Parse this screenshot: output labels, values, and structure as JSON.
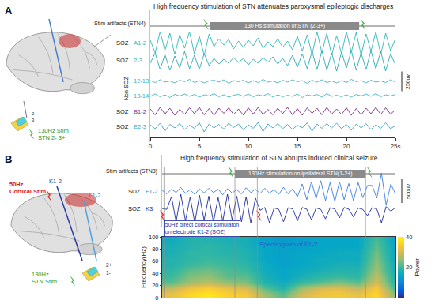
{
  "figure": {
    "panel_labels": [
      "A",
      "B"
    ],
    "illustration_A": {
      "stim_labels": [
        "130Hz Stim",
        "STN 2- 3+"
      ],
      "contacts": [
        "2",
        "3"
      ]
    },
    "illustration_B": {
      "cortical_stim": [
        "50Hz",
        "Cortical Stim"
      ],
      "electrodes": [
        "K1-2",
        "F1-2"
      ],
      "stim_labels": [
        "130Hz",
        "STN Stim"
      ],
      "contacts": [
        "2+",
        "1-"
      ]
    }
  },
  "chart_data": [
    {
      "type": "line",
      "title": "High frequency stimulation of STN attenuates paroxysmal epileptogic discharges",
      "xlim": [
        0,
        25
      ],
      "xticks": [
        0,
        5,
        10,
        15,
        20,
        {
          "value": 25,
          "label": "25s"
        }
      ],
      "ylim": [
        -200,
        200
      ],
      "tick_labels": "x",
      "x": [
        0,
        0.5,
        1,
        1.5,
        2,
        2.5,
        3,
        3.5,
        4,
        4.5,
        5,
        5.5,
        6,
        6.5,
        7,
        7.5,
        8,
        8.5,
        9,
        9.5,
        10,
        10.5,
        11,
        11.5,
        12,
        12.5,
        13,
        13.5,
        14,
        14.5,
        15,
        15.5,
        16,
        16.5,
        17,
        17.5,
        18,
        18.5,
        19,
        19.5,
        20,
        20.5,
        21,
        21.5,
        22,
        22.5,
        23,
        23.5,
        24,
        24.5,
        25
      ],
      "series": [
        {
          "name": "Stim artifacts (STN4)",
          "color": "#444444",
          "x": [
            0,
            25
          ],
          "values": [
            0,
            0
          ]
        },
        {
          "name": "A1-2",
          "group": "SOZ",
          "color": "#2fb8b8",
          "values": [
            40,
            -120,
            150,
            -90,
            130,
            -140,
            110,
            -60,
            150,
            -130,
            90,
            -150,
            120,
            -40,
            60,
            -20,
            50,
            -70,
            30,
            -50,
            40,
            -30,
            70,
            -60,
            20,
            -40,
            60,
            -50,
            30,
            -80,
            90,
            -100,
            110,
            -140,
            150,
            -120,
            130,
            -150,
            100,
            -130,
            150,
            -110,
            140,
            -150,
            120,
            -100,
            150,
            -140,
            130,
            -90,
            60
          ]
        },
        {
          "name": "2-3",
          "group": "SOZ",
          "color": "#2aa9b4",
          "values": [
            -30,
            100,
            -110,
            80,
            -120,
            60,
            -90,
            120,
            -100,
            70,
            -110,
            90,
            -60,
            30,
            -40,
            20,
            -30,
            40,
            -20,
            30,
            -50,
            20,
            -30,
            40,
            -20,
            50,
            -40,
            30,
            -60,
            70,
            -80,
            90,
            -100,
            120,
            -110,
            130,
            -120,
            100,
            -130,
            110,
            -90,
            130,
            -120,
            100,
            -110,
            130,
            -100,
            120,
            -130,
            90,
            -50
          ]
        },
        {
          "name": "12-13",
          "color": "#3fb3c4",
          "values": [
            10,
            -15,
            20,
            -10,
            5,
            -20,
            15,
            -5,
            25,
            -15,
            10,
            -20,
            5,
            15,
            -10,
            20,
            -25,
            10,
            -5,
            15,
            -20,
            10,
            -15,
            25,
            -10,
            5,
            -20,
            15,
            -10,
            20,
            -5,
            10,
            -25,
            15,
            -10,
            20,
            -15,
            5,
            -20,
            10,
            -15,
            25,
            -5,
            10,
            -20,
            15,
            -10,
            5,
            -15,
            20,
            -10
          ]
        },
        {
          "name": "13-14",
          "color": "#3fb3c4",
          "values": [
            -10,
            20,
            -15,
            10,
            -25,
            15,
            -5,
            20,
            -10,
            15,
            -20,
            10,
            -5,
            25,
            -15,
            10,
            -20,
            5,
            15,
            -10,
            20,
            -15,
            10,
            -5,
            25,
            -20,
            10,
            -15,
            5,
            -10,
            20,
            -25,
            10,
            -5,
            15,
            -20,
            25,
            -10,
            5,
            -15,
            10,
            -20,
            15,
            -5,
            20,
            -10,
            25,
            -15,
            10,
            -5,
            15
          ]
        },
        {
          "name": "B1-2",
          "group": "SOZ",
          "color": "#7a2a8c",
          "values": [
            30,
            -45,
            50,
            -35,
            40,
            -50,
            25,
            -40,
            45,
            -30,
            50,
            -45,
            35,
            -50,
            40,
            -25,
            45,
            -40,
            30,
            -50,
            45,
            -35,
            50,
            -40,
            25,
            -45,
            40,
            -30,
            50,
            -45,
            35,
            -50,
            45,
            -25,
            40,
            -45,
            50,
            -35,
            30,
            -40,
            45,
            -50,
            35,
            -45,
            40,
            -30,
            50,
            -40,
            45,
            -35,
            20
          ]
        },
        {
          "name": "E2-3",
          "group": "SOZ",
          "color": "#3a9fc2",
          "values": [
            20,
            -30,
            40,
            -60,
            25,
            -20,
            35,
            -40,
            15,
            -25,
            45,
            -70,
            30,
            -20,
            25,
            -35,
            40,
            -15,
            30,
            -45,
            20,
            -25,
            50,
            -65,
            30,
            -20,
            35,
            -30,
            25,
            -40,
            15,
            -20,
            45,
            -60,
            30,
            -25,
            35,
            -20,
            40,
            -30,
            25,
            -50,
            30,
            -20,
            35,
            -40,
            20,
            -25,
            45,
            -30,
            10
          ]
        }
      ],
      "group_labels": [
        {
          "text": "Non-SOZ",
          "series": [
            "12-13",
            "13-14"
          ]
        }
      ],
      "stimulation": {
        "text": "130 Hs stimulation of STN (2-3+)",
        "start": 6.1,
        "end": 21.3
      },
      "scale_bar": {
        "value": 250,
        "label": "250uv"
      }
    },
    {
      "type": "line",
      "title": "High frequency stimulation of STN abrupts induced clinical seizure",
      "xlim": [
        0,
        25
      ],
      "ylim": [
        -400,
        400
      ],
      "tick_labels": false,
      "x": [
        0,
        0.5,
        1,
        1.5,
        2,
        2.5,
        3,
        3.5,
        4,
        4.5,
        5,
        5.5,
        6,
        6.5,
        7,
        7.5,
        8,
        8.5,
        9,
        9.5,
        10,
        10.5,
        11,
        11.5,
        12,
        12.5,
        13,
        13.5,
        14,
        14.5,
        15,
        15.5,
        16,
        16.5,
        17,
        17.5,
        18,
        18.5,
        19,
        19.5,
        20,
        20.5,
        21,
        21.5,
        22,
        22.5,
        23,
        23.5,
        24,
        24.5,
        25
      ],
      "series": [
        {
          "name": "Stim artifacts (STN3)",
          "color": "#444444",
          "x": [
            0,
            25
          ],
          "values": [
            0,
            0
          ]
        },
        {
          "name": "F1-2",
          "group": "SOZ",
          "color": "#3d7fe0",
          "values": [
            20,
            -60,
            40,
            -30,
            80,
            -50,
            30,
            -70,
            50,
            -40,
            60,
            -30,
            40,
            -80,
            50,
            -40,
            30,
            -60,
            70,
            -30,
            40,
            -50,
            60,
            -40,
            30,
            -70,
            80,
            -60,
            50,
            -120,
            150,
            -180,
            200,
            -160,
            220,
            -200,
            180,
            -220,
            200,
            -180,
            160,
            -200,
            180,
            -140,
            120,
            120,
            -150,
            380,
            -300,
            150,
            -60
          ]
        },
        {
          "name": "K3",
          "group": "SOZ",
          "color": "#1d2b9e",
          "values": [
            0,
            -20,
            250,
            -280,
            300,
            -260,
            240,
            -300,
            280,
            -250,
            260,
            -290,
            230,
            -270,
            300,
            -240,
            260,
            -280,
            250,
            -300,
            220,
            -40,
            20,
            -300,
            10,
            -20,
            -280,
            15,
            -10,
            -260,
            20,
            -15,
            -240,
            10,
            -20,
            -220,
            15,
            -10,
            -200,
            20,
            -15,
            -180,
            10,
            -20,
            -150,
            15,
            -10,
            -300,
            40,
            -60,
            20
          ]
        }
      ],
      "stimulation": {
        "text": "130Hz stimulation on ipsilateral STN(1-2+)",
        "start": 7.8,
        "end": 21.8
      },
      "cortical_stimulation": {
        "text_lines": [
          "50Hz direct cortical stimulaton",
          "on electrode K1-2 (SOZ)"
        ],
        "start": 0.2,
        "end": 10.2
      },
      "scale_bar": {
        "value": 500,
        "label": "500uv"
      }
    },
    {
      "type": "heatmap",
      "title": "Spectrogram of F1-2",
      "ylabel": "Frequency(Hz)",
      "xlim": [
        0,
        25
      ],
      "ylim": [
        0,
        100
      ],
      "yticks": [
        0,
        20,
        40,
        60,
        80,
        100
      ],
      "tick_labels": "y",
      "x": [
        1,
        3,
        5,
        7,
        9,
        11,
        13,
        15,
        17,
        19,
        21,
        23,
        25
      ],
      "y": [
        5,
        15,
        25,
        35,
        45,
        55,
        65,
        75,
        85,
        95
      ],
      "cells": [
        [
          32,
          36,
          38,
          35,
          34,
          26,
          22,
          30,
          33,
          34,
          32,
          36,
          24
        ],
        [
          28,
          33,
          35,
          32,
          30,
          22,
          18,
          26,
          30,
          31,
          28,
          34,
          20
        ],
        [
          22,
          26,
          28,
          25,
          24,
          18,
          16,
          20,
          22,
          24,
          22,
          30,
          18
        ],
        [
          20,
          24,
          25,
          22,
          22,
          17,
          15,
          17,
          19,
          20,
          19,
          28,
          17
        ],
        [
          19,
          22,
          23,
          21,
          20,
          16,
          15,
          16,
          17,
          18,
          18,
          26,
          16
        ],
        [
          18,
          20,
          21,
          20,
          19,
          16,
          14,
          15,
          16,
          17,
          17,
          25,
          16
        ],
        [
          18,
          19,
          20,
          19,
          18,
          15,
          14,
          15,
          16,
          16,
          16,
          24,
          15
        ],
        [
          17,
          19,
          19,
          18,
          18,
          15,
          14,
          15,
          15,
          16,
          16,
          23,
          15
        ],
        [
          17,
          18,
          19,
          18,
          17,
          15,
          14,
          14,
          15,
          15,
          15,
          22,
          15
        ],
        [
          16,
          18,
          18,
          17,
          17,
          14,
          13,
          14,
          15,
          15,
          15,
          21,
          14
        ]
      ],
      "colorbar": {
        "title": "Power",
        "range": [
          0,
          40
        ],
        "ticks": [
          20,
          40
        ]
      }
    }
  ]
}
